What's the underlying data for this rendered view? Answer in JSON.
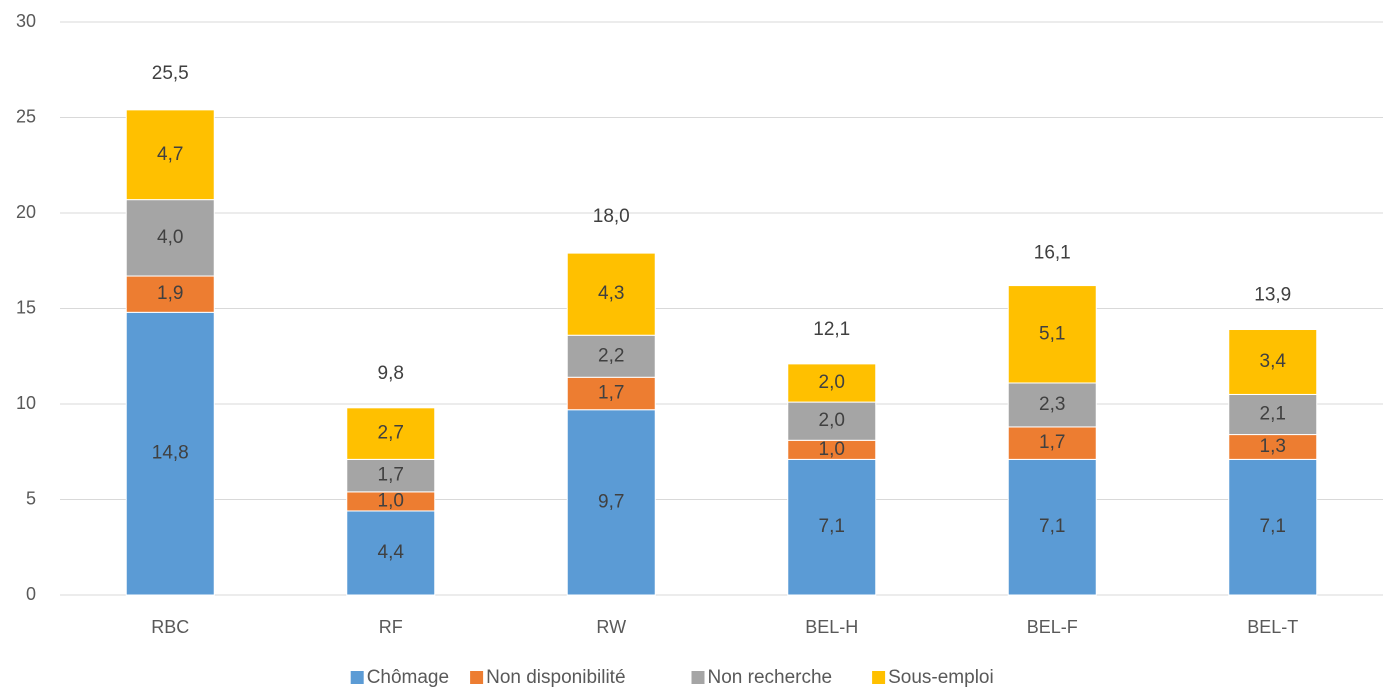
{
  "chart_data": {
    "type": "stacked_bar",
    "categories": [
      "RBC",
      "RF",
      "RW",
      "BEL-H",
      "BEL-F",
      "BEL-T"
    ],
    "series": [
      {
        "name": "Chômage",
        "color": "#5b9bd5",
        "values": [
          14.8,
          4.4,
          9.7,
          7.1,
          7.1,
          7.1
        ],
        "value_labels": [
          "14,8",
          "4,4",
          "9,7",
          "7,1",
          "7,1",
          "7,1"
        ]
      },
      {
        "name": "Non disponibilité",
        "color": "#ed7d31",
        "values": [
          1.9,
          1.0,
          1.7,
          1.0,
          1.7,
          1.3
        ],
        "value_labels": [
          "1,9",
          "1,0",
          "1,7",
          "1,0",
          "1,7",
          "1,3"
        ]
      },
      {
        "name": "Non recherche",
        "color": "#a5a5a5",
        "values": [
          4.0,
          1.7,
          2.2,
          2.0,
          2.3,
          2.1
        ],
        "value_labels": [
          "4,0",
          "1,7",
          "2,2",
          "2,0",
          "2,3",
          "2,1"
        ]
      },
      {
        "name": "Sous-emploi",
        "color": "#ffc000",
        "values": [
          4.7,
          2.7,
          4.3,
          2.0,
          5.1,
          3.4
        ],
        "value_labels": [
          "4,7",
          "2,7",
          "4,3",
          "2,0",
          "5,1",
          "3,4"
        ]
      }
    ],
    "totals": [
      25.5,
      9.8,
      18.0,
      12.1,
      16.1,
      13.9
    ],
    "total_labels": [
      "25,5",
      "9,8",
      "18,0",
      "12,1",
      "16,1",
      "13,9"
    ],
    "ylim": [
      0,
      30
    ],
    "yticks": [
      0,
      5,
      10,
      15,
      20,
      25,
      30
    ],
    "grid": true,
    "legend": "bottom"
  }
}
